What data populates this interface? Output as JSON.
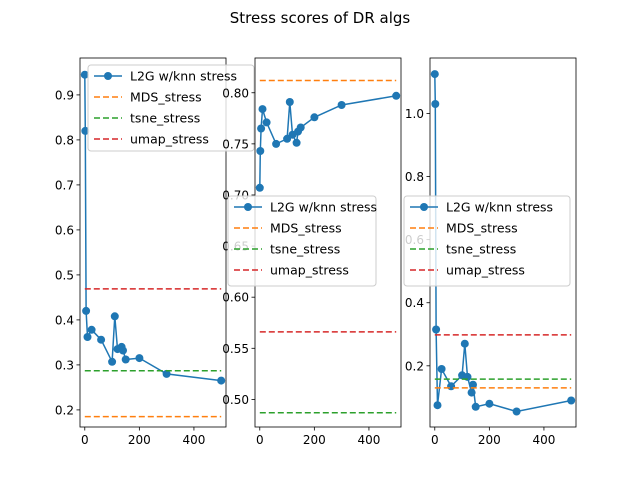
{
  "figure": {
    "title": "Stress scores of DR algs"
  },
  "chart_data": [
    {
      "type": "line",
      "title": "",
      "xlabel": "",
      "ylabel": "",
      "xlim": [
        -17.5,
        517.5
      ],
      "ylim": [
        0.162,
        0.982
      ],
      "xticks": [
        0,
        200,
        400
      ],
      "yticks": [
        0.2,
        0.3,
        0.4,
        0.5,
        0.6,
        0.7,
        0.8,
        0.9
      ],
      "ytick_labels": [
        "0.2",
        "0.3",
        "0.4",
        "0.5",
        "0.6",
        "0.7",
        "0.8",
        "0.9"
      ],
      "legend_position": "upper-right",
      "series": [
        {
          "name": "L2G w/knn stress",
          "style": "line-marker",
          "color": "#1f77b4",
          "x": [
            0,
            2,
            5,
            10,
            25,
            60,
            100,
            110,
            120,
            135,
            140,
            150,
            200,
            300,
            500
          ],
          "y": [
            0.945,
            0.82,
            0.42,
            0.362,
            0.378,
            0.356,
            0.307,
            0.408,
            0.335,
            0.34,
            0.332,
            0.312,
            0.315,
            0.28,
            0.265
          ]
        },
        {
          "name": "MDS_stress",
          "style": "dashed",
          "color": "#ff7f0e",
          "x": [
            0,
            500
          ],
          "y": [
            0.185,
            0.185
          ]
        },
        {
          "name": "tsne_stress",
          "style": "dashed",
          "color": "#2ca02c",
          "x": [
            0,
            500
          ],
          "y": [
            0.287,
            0.287
          ]
        },
        {
          "name": "umap_stress",
          "style": "dashed",
          "color": "#d62728",
          "x": [
            0,
            500
          ],
          "y": [
            0.469,
            0.469
          ]
        }
      ]
    },
    {
      "type": "line",
      "title": "",
      "xlabel": "",
      "ylabel": "",
      "xlim": [
        -17.5,
        517.5
      ],
      "ylim": [
        0.473,
        0.834
      ],
      "xticks": [
        0,
        200,
        400
      ],
      "yticks": [
        0.5,
        0.55,
        0.6,
        0.65,
        0.7,
        0.75,
        0.8
      ],
      "ytick_labels": [
        "0.50",
        "0.55",
        "0.60",
        "0.65",
        "0.70",
        "0.75",
        "0.80"
      ],
      "legend_position": "center",
      "series": [
        {
          "name": "L2G w/knn stress",
          "style": "line-marker",
          "color": "#1f77b4",
          "x": [
            0,
            2,
            5,
            10,
            25,
            60,
            100,
            110,
            120,
            135,
            140,
            150,
            200,
            300,
            500
          ],
          "y": [
            0.707,
            0.743,
            0.765,
            0.784,
            0.771,
            0.75,
            0.755,
            0.791,
            0.759,
            0.751,
            0.762,
            0.766,
            0.776,
            0.788,
            0.797
          ]
        },
        {
          "name": "MDS_stress",
          "style": "dashed",
          "color": "#ff7f0e",
          "x": [
            0,
            500
          ],
          "y": [
            0.812,
            0.812
          ]
        },
        {
          "name": "tsne_stress",
          "style": "dashed",
          "color": "#2ca02c",
          "x": [
            0,
            500
          ],
          "y": [
            0.487,
            0.487
          ]
        },
        {
          "name": "umap_stress",
          "style": "dashed",
          "color": "#d62728",
          "x": [
            0,
            500
          ],
          "y": [
            0.566,
            0.566
          ]
        }
      ]
    },
    {
      "type": "line",
      "title": "",
      "xlabel": "",
      "ylabel": "",
      "xlim": [
        -17.5,
        517.5
      ],
      "ylim": [
        0.006,
        1.176
      ],
      "xticks": [
        0,
        200,
        400
      ],
      "yticks": [
        0.2,
        0.4,
        0.6,
        0.8,
        1.0
      ],
      "ytick_labels": [
        "0.2",
        "0.4",
        "0.6",
        "0.8",
        "1.0"
      ],
      "legend_position": "center",
      "series": [
        {
          "name": "L2G w/knn stress",
          "style": "line-marker",
          "color": "#1f77b4",
          "x": [
            0,
            2,
            5,
            10,
            25,
            60,
            100,
            110,
            120,
            135,
            140,
            150,
            200,
            300,
            500
          ],
          "y": [
            1.125,
            1.03,
            0.315,
            0.075,
            0.19,
            0.135,
            0.17,
            0.27,
            0.165,
            0.115,
            0.14,
            0.07,
            0.08,
            0.055,
            0.09
          ]
        },
        {
          "name": "MDS_stress",
          "style": "dashed",
          "color": "#ff7f0e",
          "x": [
            0,
            500
          ],
          "y": [
            0.13,
            0.13
          ]
        },
        {
          "name": "tsne_stress",
          "style": "dashed",
          "color": "#2ca02c",
          "x": [
            0,
            500
          ],
          "y": [
            0.158,
            0.158
          ]
        },
        {
          "name": "umap_stress",
          "style": "dashed",
          "color": "#d62728",
          "x": [
            0,
            500
          ],
          "y": [
            0.298,
            0.298
          ]
        }
      ]
    }
  ]
}
